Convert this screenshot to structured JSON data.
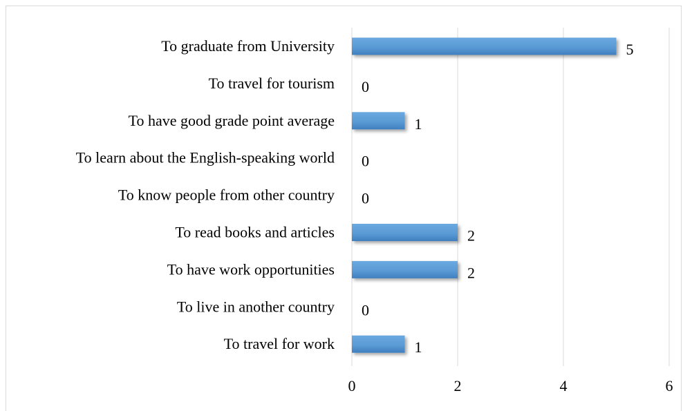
{
  "chart_data": {
    "type": "bar",
    "orientation": "horizontal",
    "categories": [
      "To graduate from University",
      "To travel for tourism",
      "To have good grade point average",
      "To learn about the English-speaking world",
      "To know people from other country",
      "To read books and articles",
      "To have work opportunities",
      "To live in another country",
      "To travel for work"
    ],
    "values": [
      5,
      0,
      1,
      0,
      0,
      2,
      2,
      0,
      1
    ],
    "data_labels": [
      "5",
      "0",
      "1",
      "0",
      "0",
      "2",
      "2",
      "0",
      "1"
    ],
    "xlim": [
      0,
      6
    ],
    "x_ticks": [
      0,
      2,
      4,
      6
    ],
    "x_tick_labels": [
      "0",
      "2",
      "4",
      "6"
    ],
    "title": "",
    "xlabel": "",
    "ylabel": "",
    "grid": "vertical",
    "legend": "none",
    "bar_color": "#5b9bd5"
  }
}
